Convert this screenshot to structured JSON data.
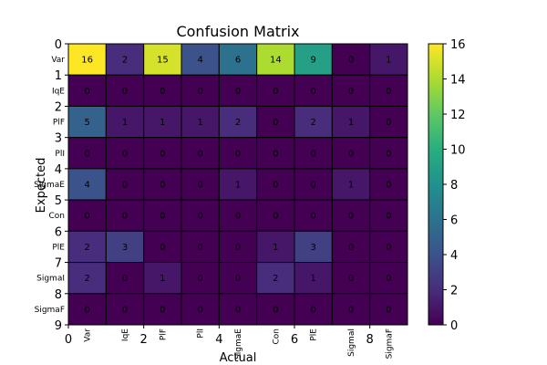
{
  "chart_data": {
    "type": "heatmap",
    "title": "Confusion Matrix",
    "xlabel": "Actual",
    "ylabel": "Expected",
    "row_labels": [
      "Var",
      "IqE",
      "PlF",
      "PlI",
      "SigmaE",
      "Con",
      "PlE",
      "SigmaI",
      "SigmaF"
    ],
    "col_labels": [
      "Var",
      "IqE",
      "PlF",
      "PlI",
      "SigmaE",
      "Con",
      "PlE",
      "SigmaI",
      "SigmaF"
    ],
    "x_ticks": [
      "0",
      "2",
      "4",
      "6",
      "8"
    ],
    "y_ticks": [
      "0",
      "1",
      "2",
      "3",
      "4",
      "5",
      "6",
      "7",
      "8",
      "9"
    ],
    "values": [
      [
        16,
        2,
        15,
        4,
        6,
        14,
        9,
        0,
        1
      ],
      [
        0,
        0,
        0,
        0,
        0,
        0,
        0,
        0,
        0
      ],
      [
        5,
        1,
        1,
        1,
        2,
        0,
        2,
        1,
        0
      ],
      [
        0,
        0,
        0,
        0,
        0,
        0,
        0,
        0,
        0
      ],
      [
        4,
        0,
        0,
        0,
        1,
        0,
        0,
        1,
        0
      ],
      [
        0,
        0,
        0,
        0,
        0,
        0,
        0,
        0,
        0
      ],
      [
        2,
        3,
        0,
        0,
        0,
        1,
        3,
        0,
        0
      ],
      [
        2,
        0,
        1,
        0,
        0,
        2,
        1,
        0,
        0
      ],
      [
        0,
        0,
        0,
        0,
        0,
        0,
        0,
        0,
        0
      ]
    ],
    "vmin": 0,
    "vmax": 16,
    "colormap": "viridis",
    "colorbar_ticks": [
      "0",
      "2",
      "4",
      "6",
      "8",
      "10",
      "12",
      "14",
      "16"
    ],
    "grid": true,
    "cell_border_color": "#000000"
  }
}
